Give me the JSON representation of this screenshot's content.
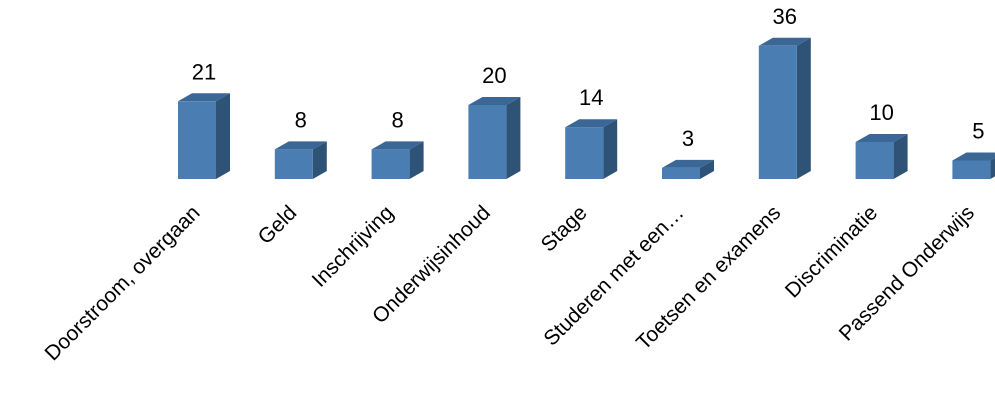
{
  "chart_data": {
    "type": "bar",
    "categories": [
      "Doorstroom, overgaan",
      "Geld",
      "Inschrijving",
      "Onderwijsinhoud",
      "Stage",
      "Studeren met een…",
      "Toetsen en examens",
      "Discriminatie",
      "Passend Onderwijs"
    ],
    "values": [
      21,
      8,
      8,
      20,
      14,
      3,
      36,
      10,
      5
    ],
    "title": "",
    "xlabel": "",
    "ylabel": "",
    "ylim": [
      0,
      36
    ],
    "grid": false,
    "legend": "none",
    "style": "3d-column",
    "colors": {
      "front": "#4a7db2",
      "side": "#2f5277",
      "top": "#3a6795"
    }
  }
}
